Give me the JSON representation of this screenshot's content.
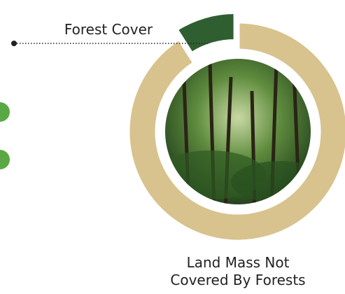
{
  "chart_data": {
    "type": "pie",
    "categories": [
      "Forest Cover",
      "Land Mass Not Covered By Forests"
    ],
    "values": [
      9,
      91
    ],
    "colors": [
      "#2f5f31",
      "#d8c38e"
    ]
  }
}
